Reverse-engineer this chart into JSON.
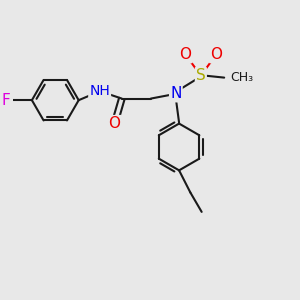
{
  "background_color": "#e8e8e8",
  "bond_color": "#1a1a1a",
  "bond_width": 1.5,
  "atom_colors": {
    "N": "#0000ee",
    "O": "#ee0000",
    "F": "#dd00dd",
    "S": "#aaaa00",
    "C": "#1a1a1a"
  },
  "font_size_large": 11,
  "font_size_med": 10,
  "font_size_small": 9
}
